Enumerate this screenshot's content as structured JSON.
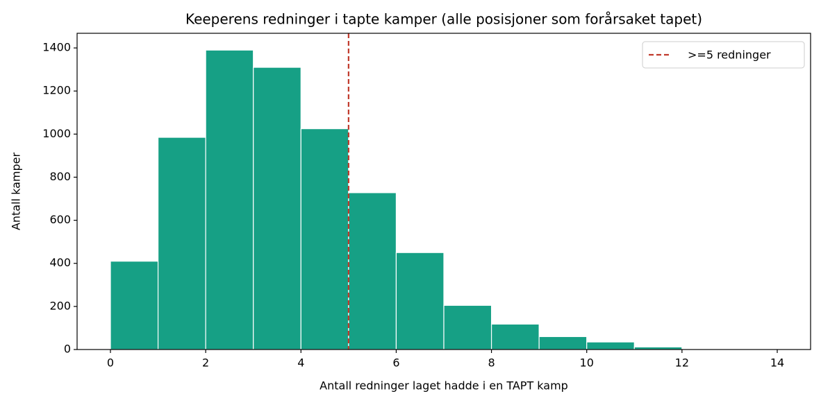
{
  "chart_data": {
    "type": "histogram",
    "title": "Keeperens redninger i tapte kamper (alle posisjoner som forårsaket tapet)",
    "xlabel": "Antall redninger laget hadde i en TAPT kamp",
    "ylabel": "Antall kamper",
    "bins": [
      0,
      1,
      2,
      3,
      4,
      5,
      6,
      7,
      8,
      9,
      10,
      11,
      12,
      13,
      14
    ],
    "values": [
      410,
      985,
      1390,
      1310,
      1025,
      728,
      450,
      205,
      118,
      60,
      35,
      12,
      0,
      0
    ],
    "color": "#16a085",
    "xlim": [
      -0.7,
      14.7
    ],
    "xticks": [
      0,
      2,
      4,
      6,
      8,
      10,
      12,
      14
    ],
    "ylim": [
      0,
      1468
    ],
    "yticks": [
      0,
      200,
      400,
      600,
      800,
      1000,
      1200,
      1400
    ],
    "vline": {
      "x": 5,
      "label": ">=5 redninger",
      "color": "#c0392b",
      "style": "dashed"
    },
    "legend": "upper right"
  }
}
